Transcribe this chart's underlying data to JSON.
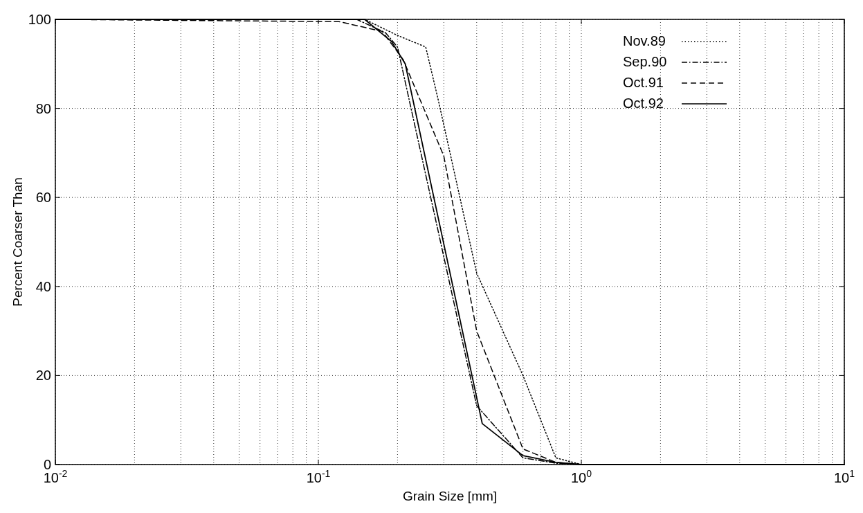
{
  "chart_data": {
    "type": "line",
    "xlabel": "Grain Size  [mm]",
    "ylabel": "Percent Coarser Than",
    "log": "x",
    "grid": true,
    "legend": "top right",
    "xlim": [
      0.01,
      10
    ],
    "xticks": [
      {
        "value": 0.01,
        "label": "10$^{-2}$"
      },
      {
        "value": 0.1,
        "label": "10$^{-1}$"
      },
      {
        "value": 1,
        "label": "10$^{0}$"
      },
      {
        "value": 10,
        "label": "10$^{1}$"
      }
    ],
    "ylim": [
      0,
      100
    ],
    "yticks": [
      0,
      20,
      40,
      60,
      80,
      100
    ],
    "series": [
      {
        "name": "Nov.89",
        "color": "#000000",
        "line_style": "dotted",
        "x": [
          0.01,
          0.15,
          0.2,
          0.256,
          0.286,
          0.4,
          0.6,
          0.8,
          1,
          10
        ],
        "values": [
          100,
          100,
          96.4,
          93.8,
          81.8,
          43,
          20,
          1.5,
          0,
          0
        ]
      },
      {
        "name": "Sep.90",
        "color": "#000000",
        "line_style": "dashdot",
        "x": [
          0.01,
          0.14,
          0.18,
          0.2,
          0.4,
          0.6,
          0.8,
          1,
          10
        ],
        "values": [
          100,
          100,
          97,
          93.8,
          13.2,
          1.5,
          0.3,
          0,
          0
        ]
      },
      {
        "name": "Oct.91",
        "color": "#000000",
        "line_style": "dashed",
        "x": [
          0.01,
          0.12,
          0.175,
          0.21,
          0.3,
          0.4,
          0.6,
          0.8,
          1,
          10
        ],
        "values": [
          100,
          99.5,
          97.3,
          91,
          69.3,
          30,
          3.5,
          0.5,
          0,
          0
        ]
      },
      {
        "name": "Oct.92",
        "color": "#000000",
        "line_style": "solid",
        "x": [
          0.01,
          0.15,
          0.19,
          0.214,
          0.42,
          0.6,
          0.8,
          1,
          10
        ],
        "values": [
          100,
          100,
          95,
          90,
          9.2,
          2,
          0.5,
          0,
          0
        ]
      }
    ]
  }
}
